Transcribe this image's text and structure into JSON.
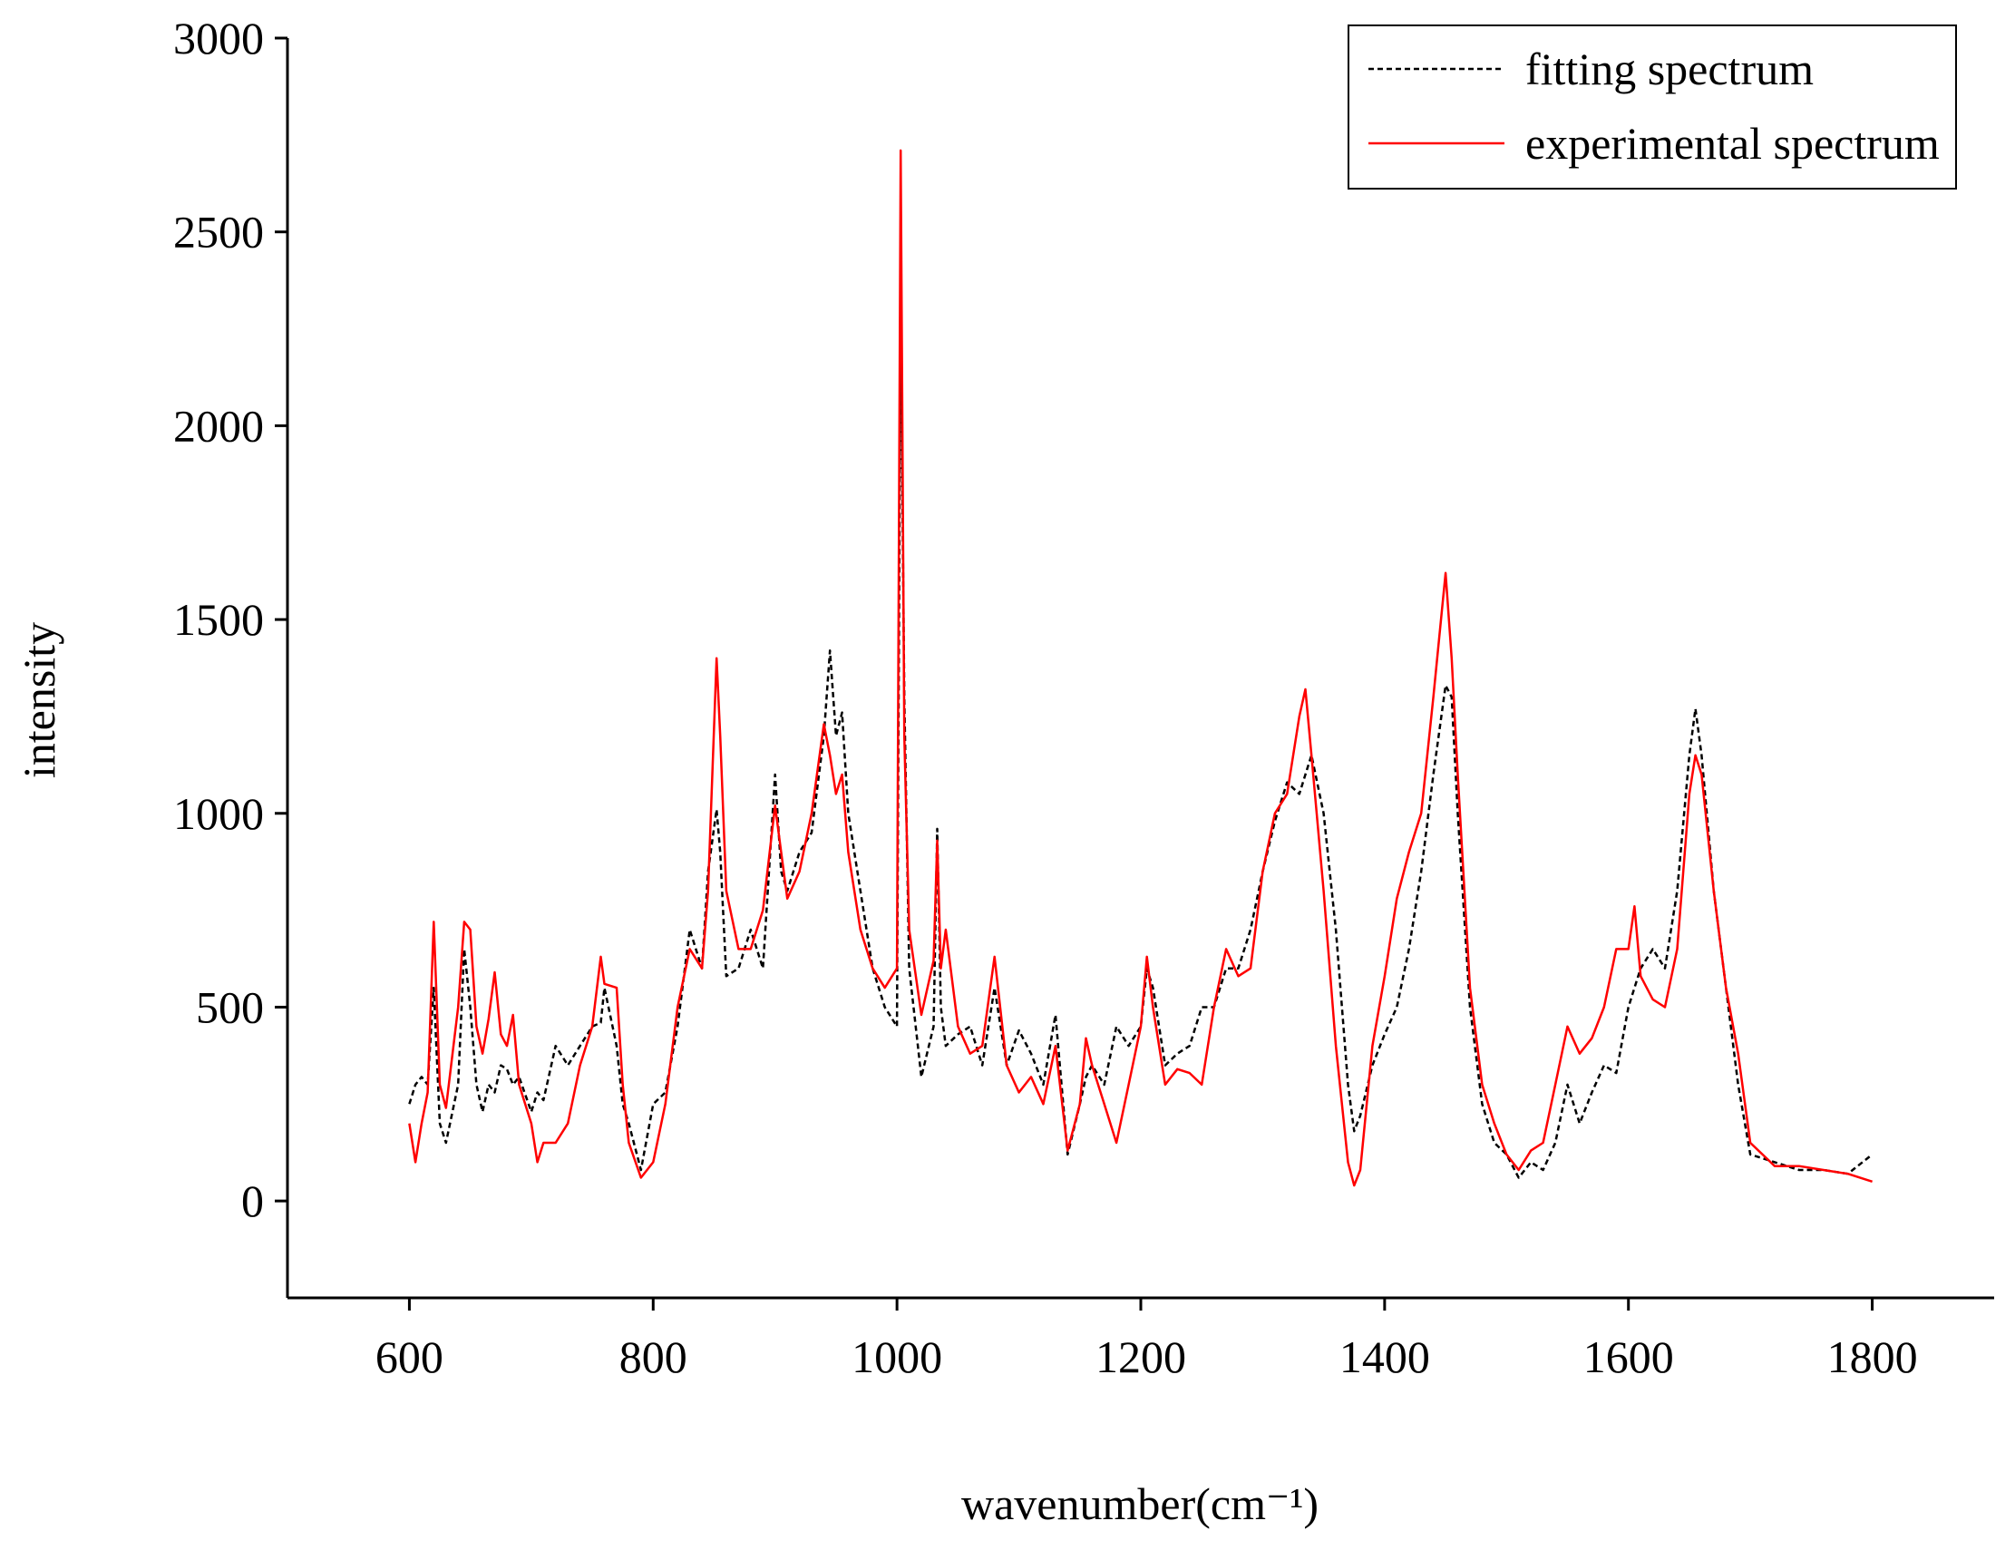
{
  "chart_data": {
    "type": "line",
    "xlabel": "wavenumber(cm⁻¹)",
    "ylabel": "intensity",
    "x": [
      600,
      605,
      610,
      615,
      620,
      625,
      630,
      640,
      645,
      650,
      655,
      660,
      665,
      670,
      675,
      680,
      685,
      690,
      700,
      705,
      710,
      720,
      730,
      740,
      750,
      757,
      760,
      770,
      775,
      780,
      790,
      800,
      810,
      820,
      830,
      840,
      845,
      852,
      855,
      860,
      870,
      880,
      890,
      900,
      905,
      910,
      920,
      930,
      940,
      945,
      950,
      955,
      960,
      970,
      980,
      990,
      1000,
      1003,
      1006,
      1010,
      1020,
      1030,
      1033,
      1036,
      1040,
      1050,
      1060,
      1070,
      1080,
      1090,
      1100,
      1110,
      1120,
      1130,
      1140,
      1150,
      1155,
      1160,
      1170,
      1180,
      1190,
      1200,
      1205,
      1210,
      1220,
      1230,
      1240,
      1250,
      1260,
      1270,
      1280,
      1290,
      1300,
      1310,
      1320,
      1330,
      1335,
      1340,
      1350,
      1360,
      1370,
      1375,
      1380,
      1390,
      1400,
      1410,
      1420,
      1430,
      1440,
      1450,
      1455,
      1460,
      1470,
      1480,
      1490,
      1500,
      1510,
      1520,
      1530,
      1540,
      1550,
      1560,
      1570,
      1580,
      1590,
      1600,
      1605,
      1610,
      1620,
      1630,
      1640,
      1650,
      1655,
      1660,
      1670,
      1680,
      1690,
      1700,
      1710,
      1720,
      1740,
      1760,
      1780,
      1800
    ],
    "series": [
      {
        "name": "fitting spectrum",
        "color": "#000000",
        "line_style": "dashed",
        "values": [
          250,
          300,
          320,
          300,
          550,
          200,
          150,
          300,
          650,
          500,
          300,
          230,
          300,
          280,
          350,
          340,
          300,
          320,
          230,
          280,
          260,
          400,
          350,
          400,
          450,
          460,
          550,
          400,
          250,
          200,
          80,
          250,
          280,
          450,
          700,
          600,
          850,
          1010,
          900,
          580,
          600,
          700,
          600,
          1100,
          850,
          800,
          900,
          950,
          1200,
          1420,
          1200,
          1260,
          1000,
          800,
          600,
          500,
          450,
          2300,
          1300,
          600,
          320,
          450,
          960,
          500,
          400,
          430,
          450,
          350,
          550,
          350,
          440,
          380,
          300,
          480,
          120,
          250,
          320,
          350,
          300,
          450,
          400,
          450,
          600,
          550,
          350,
          380,
          400,
          500,
          500,
          600,
          600,
          700,
          850,
          980,
          1080,
          1050,
          1100,
          1150,
          1000,
          700,
          300,
          180,
          220,
          350,
          430,
          500,
          650,
          850,
          1100,
          1330,
          1300,
          1000,
          500,
          250,
          150,
          120,
          60,
          100,
          80,
          150,
          300,
          200,
          280,
          350,
          330,
          500,
          550,
          600,
          650,
          600,
          800,
          1150,
          1270,
          1150,
          800,
          550,
          300,
          120,
          110,
          100,
          80,
          80,
          70,
          120
        ]
      },
      {
        "name": "experimental spectrum",
        "color": "#ff0000",
        "line_style": "solid",
        "values": [
          200,
          100,
          200,
          280,
          720,
          300,
          240,
          500,
          720,
          700,
          450,
          380,
          470,
          590,
          430,
          400,
          480,
          300,
          200,
          100,
          150,
          150,
          200,
          350,
          450,
          630,
          560,
          550,
          300,
          150,
          60,
          100,
          250,
          500,
          650,
          600,
          800,
          1400,
          1200,
          800,
          650,
          650,
          750,
          1020,
          900,
          780,
          850,
          1000,
          1230,
          1150,
          1050,
          1100,
          900,
          700,
          600,
          550,
          600,
          2710,
          1200,
          700,
          480,
          620,
          930,
          600,
          700,
          450,
          380,
          400,
          630,
          350,
          280,
          320,
          250,
          400,
          130,
          250,
          420,
          350,
          250,
          150,
          300,
          450,
          630,
          500,
          300,
          340,
          330,
          300,
          500,
          650,
          580,
          600,
          850,
          1000,
          1050,
          1250,
          1320,
          1150,
          800,
          400,
          100,
          40,
          80,
          400,
          580,
          780,
          900,
          1000,
          1300,
          1620,
          1400,
          1100,
          550,
          300,
          200,
          120,
          80,
          130,
          150,
          300,
          450,
          380,
          420,
          500,
          650,
          650,
          760,
          580,
          520,
          500,
          650,
          1050,
          1150,
          1100,
          800,
          550,
          380,
          150,
          120,
          90,
          90,
          80,
          70,
          50
        ]
      }
    ],
    "xlim": [
      500,
      1900
    ],
    "xticks": [
      600,
      800,
      1000,
      1200,
      1400,
      1600,
      1800
    ],
    "ylim": [
      -250,
      3000
    ],
    "yticks": [
      0,
      500,
      1000,
      1500,
      2000,
      2500,
      3000
    ],
    "legend": "upper right"
  }
}
